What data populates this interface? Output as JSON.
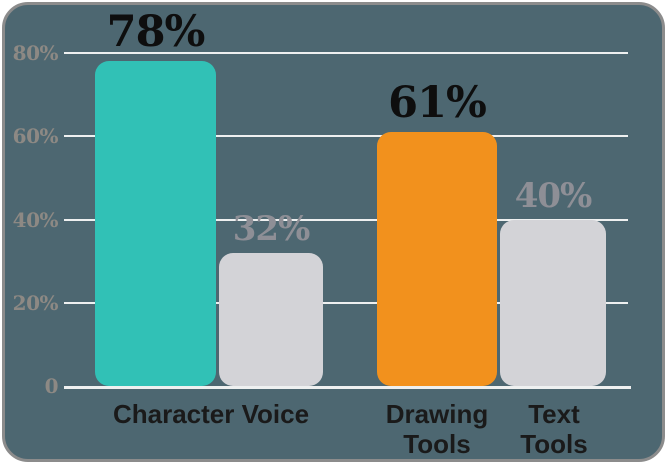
{
  "colors": {
    "background": "#4d6771",
    "border": "#8c8c8c",
    "grid": "#eef0f0",
    "axis_text": "#8d8984",
    "label_dark": "#0e0e0e",
    "label_muted": "#8e8f96",
    "x_label": "#1a1a1a",
    "teal": "#31c1b6",
    "orange": "#f2911d",
    "gray_bar": "#d3d3d7"
  },
  "chart_data": {
    "type": "bar",
    "title": "",
    "xlabel": "",
    "ylabel": "",
    "ylim": [
      0,
      80
    ],
    "grid": true,
    "legend": false,
    "yticks": [
      {
        "label": "80%",
        "value": 80
      },
      {
        "label": "60%",
        "value": 60
      },
      {
        "label": "40%",
        "value": 40
      },
      {
        "label": "20%",
        "value": 20
      },
      {
        "label": "0",
        "value": 0
      }
    ],
    "categories": [
      "Character Voice",
      "Drawing Tools",
      "Text Tools"
    ],
    "bars": [
      {
        "category": "Character Voice",
        "value": 78,
        "label": "78%",
        "color_key": "teal",
        "emphasized": true
      },
      {
        "category": "Character Voice",
        "value": 32,
        "label": "32%",
        "color_key": "gray_bar",
        "emphasized": false
      },
      {
        "category": "Drawing Tools",
        "value": 61,
        "label": "61%",
        "color_key": "orange",
        "emphasized": true
      },
      {
        "category": "Text Tools",
        "value": 40,
        "label": "40%",
        "color_key": "gray_bar",
        "emphasized": false
      }
    ]
  }
}
